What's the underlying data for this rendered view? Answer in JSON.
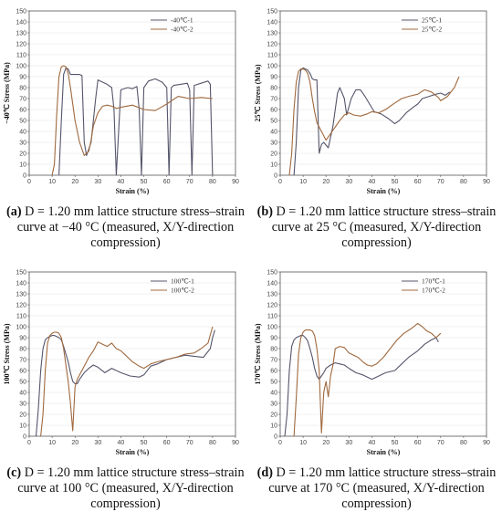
{
  "chart_data": [
    {
      "type": "line",
      "caption_label": "(a)",
      "caption_text": " D = 1.20 mm lattice structure stress–strain curve at −40 °C (measured, X/Y-direction compression)",
      "xlabel": "Strain (%)",
      "ylabel": "−40℃ Stress (MPa)",
      "xlim": [
        0,
        90
      ],
      "ylim": [
        0,
        150
      ],
      "xticks": [
        0,
        10,
        20,
        30,
        40,
        50,
        60,
        70,
        80,
        90
      ],
      "yticks": [
        0,
        10,
        20,
        30,
        40,
        50,
        60,
        70,
        80,
        90,
        100,
        110,
        120,
        130,
        140,
        150
      ],
      "legend_position": "top-right",
      "series": [
        {
          "name": "-40℃-1",
          "color": "#55556b",
          "x": [
            13,
            14,
            15,
            16,
            17,
            18,
            22,
            23,
            24,
            25,
            27,
            29,
            30,
            32,
            34,
            36,
            37,
            38,
            40,
            43,
            45,
            47,
            48,
            49,
            50,
            52,
            55,
            58,
            60,
            61,
            62,
            63,
            66,
            69,
            70,
            71,
            72,
            75,
            78,
            79,
            80
          ],
          "y": [
            0,
            50,
            92,
            98,
            97,
            92,
            92,
            91,
            30,
            18,
            30,
            70,
            87,
            85,
            83,
            80,
            60,
            0,
            78,
            80,
            79,
            81,
            60,
            0,
            80,
            86,
            88,
            85,
            80,
            0,
            80,
            82,
            83,
            84,
            78,
            0,
            82,
            84,
            86,
            83,
            0
          ]
        },
        {
          "name": "-40℃-2",
          "color": "#a0693e",
          "x": [
            10,
            11,
            12,
            13,
            14,
            15,
            16,
            17,
            18,
            19,
            20,
            22,
            24,
            25,
            26,
            27,
            28,
            30,
            32,
            34,
            36,
            38,
            40,
            45,
            50,
            55,
            60,
            65,
            70,
            75,
            80
          ],
          "y": [
            0,
            10,
            55,
            90,
            99,
            100,
            99,
            93,
            80,
            65,
            50,
            30,
            18,
            20,
            22,
            32,
            45,
            57,
            63,
            64,
            63,
            61,
            62,
            64,
            60,
            59,
            65,
            72,
            70,
            71,
            70
          ]
        }
      ]
    },
    {
      "type": "line",
      "caption_label": "(b)",
      "caption_text": " D = 1.20 mm lattice structure stress–strain curve at 25 °C (measured, X/Y-direction compression)",
      "xlabel": "Strain (%)",
      "ylabel": "25℃ Stress (MPa)",
      "xlim": [
        0,
        90
      ],
      "ylim": [
        0,
        150
      ],
      "xticks": [
        0,
        10,
        20,
        30,
        40,
        50,
        60,
        70,
        80,
        90
      ],
      "yticks": [
        0,
        10,
        20,
        30,
        40,
        50,
        60,
        70,
        80,
        90,
        100,
        110,
        120,
        130,
        140,
        150
      ],
      "legend_position": "top-right",
      "series": [
        {
          "name": "25℃-1",
          "color": "#55556b",
          "x": [
            6,
            7,
            8,
            9,
            10,
            11,
            12,
            13,
            14,
            15,
            16,
            17,
            18,
            19,
            21,
            23,
            25,
            26,
            28,
            29,
            31,
            33,
            35,
            37,
            39,
            41,
            44,
            47,
            50,
            52,
            55,
            58,
            60,
            62,
            65,
            68,
            70,
            72,
            74
          ],
          "y": [
            0,
            30,
            80,
            96,
            98,
            97,
            96,
            93,
            88,
            87,
            87,
            20,
            28,
            30,
            25,
            45,
            75,
            80,
            70,
            55,
            70,
            78,
            78,
            72,
            65,
            58,
            56,
            52,
            47,
            50,
            57,
            62,
            65,
            70,
            72,
            74,
            75,
            73,
            76
          ]
        },
        {
          "name": "25℃-2",
          "color": "#a0693e",
          "x": [
            4,
            5,
            6,
            7,
            8,
            9,
            10,
            11,
            12,
            13,
            14,
            15,
            16,
            17,
            18,
            20,
            22,
            24,
            26,
            28,
            30,
            32,
            35,
            38,
            40,
            43,
            46,
            50,
            53,
            56,
            60,
            63,
            66,
            69,
            70,
            73,
            76,
            78
          ],
          "y": [
            0,
            20,
            60,
            85,
            95,
            97,
            97,
            96,
            93,
            85,
            70,
            58,
            48,
            44,
            40,
            32,
            38,
            44,
            50,
            55,
            57,
            55,
            54,
            56,
            58,
            57,
            60,
            66,
            70,
            72,
            74,
            78,
            76,
            71,
            68,
            72,
            80,
            90
          ]
        }
      ]
    },
    {
      "type": "line",
      "caption_label": "(c)",
      "caption_text": " D = 1.20 mm lattice structure stress–strain curve at 100 °C (measured, X/Y-direction compression)",
      "xlabel": "Strain (%)",
      "ylabel": "100℃ Stress (MPa)",
      "xlim": [
        0,
        90
      ],
      "ylim": [
        0,
        150
      ],
      "xticks": [
        0,
        10,
        20,
        30,
        40,
        50,
        60,
        70,
        80,
        90
      ],
      "yticks": [
        0,
        10,
        20,
        30,
        40,
        50,
        60,
        70,
        80,
        90,
        100,
        110,
        120,
        130,
        140,
        150
      ],
      "legend_position": "top-right",
      "series": [
        {
          "name": "100℃-1",
          "color": "#55556b",
          "x": [
            3,
            4,
            5,
            6,
            7,
            8,
            9,
            10,
            11,
            12,
            13,
            14,
            15,
            16,
            17,
            18,
            19,
            20,
            21,
            22,
            24,
            26,
            28,
            30,
            33,
            36,
            40,
            44,
            48,
            50,
            53,
            56,
            60,
            64,
            68,
            72,
            76,
            79,
            80,
            81
          ],
          "y": [
            0,
            25,
            60,
            80,
            88,
            90,
            91,
            92,
            92,
            91,
            90,
            88,
            82,
            75,
            68,
            58,
            50,
            48,
            48,
            52,
            58,
            62,
            65,
            63,
            58,
            62,
            58,
            55,
            54,
            56,
            64,
            66,
            70,
            72,
            74,
            73,
            72,
            80,
            90,
            97
          ]
        },
        {
          "name": "100℃-2",
          "color": "#a0693e",
          "x": [
            5,
            6,
            7,
            8,
            9,
            10,
            11,
            12,
            13,
            14,
            15,
            16,
            17,
            18,
            19,
            20,
            21,
            22,
            24,
            26,
            28,
            30,
            32,
            34,
            36,
            38,
            40,
            42,
            45,
            48,
            50,
            53,
            56,
            60,
            64,
            68,
            72,
            75,
            78,
            80
          ],
          "y": [
            0,
            20,
            60,
            85,
            92,
            94,
            95,
            95,
            94,
            90,
            80,
            65,
            50,
            30,
            5,
            45,
            52,
            56,
            64,
            72,
            78,
            86,
            84,
            82,
            85,
            80,
            78,
            74,
            68,
            64,
            62,
            66,
            68,
            70,
            72,
            75,
            76,
            80,
            85,
            100
          ]
        }
      ]
    },
    {
      "type": "line",
      "caption_label": "(d)",
      "caption_text": " D = 1.20 mm lattice structure stress–strain curve at 170 °C (measured, X/Y-direction compression)",
      "xlabel": "Strain (%)",
      "ylabel": "170℃ Stress (MPa)",
      "xlim": [
        0,
        90
      ],
      "ylim": [
        0,
        150
      ],
      "xticks": [
        0,
        10,
        20,
        30,
        40,
        50,
        60,
        70,
        80,
        90
      ],
      "yticks": [
        0,
        10,
        20,
        30,
        40,
        50,
        60,
        70,
        80,
        90,
        100,
        110,
        120,
        130,
        140,
        150
      ],
      "legend_position": "top-right",
      "series": [
        {
          "name": "170℃-1",
          "color": "#55556b",
          "x": [
            2,
            3,
            4,
            5,
            6,
            7,
            8,
            9,
            10,
            11,
            12,
            13,
            14,
            15,
            16,
            17,
            18,
            19,
            20,
            22,
            24,
            26,
            28,
            30,
            33,
            36,
            40,
            43,
            46,
            50,
            53,
            56,
            60,
            63,
            66,
            68,
            69
          ],
          "y": [
            0,
            20,
            60,
            82,
            88,
            90,
            91,
            92,
            92,
            90,
            87,
            80,
            72,
            62,
            55,
            52,
            55,
            58,
            62,
            65,
            67,
            66,
            65,
            62,
            58,
            56,
            52,
            55,
            58,
            60,
            66,
            72,
            78,
            84,
            88,
            90,
            86
          ]
        },
        {
          "name": "170℃-2",
          "color": "#a0693e",
          "x": [
            6,
            7,
            8,
            9,
            10,
            11,
            12,
            13,
            14,
            15,
            16,
            17,
            18,
            19,
            20,
            21,
            22,
            23,
            24,
            26,
            28,
            30,
            32,
            34,
            36,
            38,
            40,
            42,
            45,
            48,
            51,
            54,
            57,
            60,
            62,
            64,
            66,
            68,
            70
          ],
          "y": [
            0,
            35,
            75,
            90,
            95,
            97,
            97,
            97,
            96,
            92,
            80,
            60,
            3,
            40,
            50,
            36,
            55,
            65,
            80,
            82,
            81,
            76,
            74,
            72,
            68,
            65,
            64,
            66,
            72,
            80,
            88,
            94,
            98,
            103,
            100,
            96,
            94,
            90,
            94
          ]
        }
      ]
    }
  ]
}
